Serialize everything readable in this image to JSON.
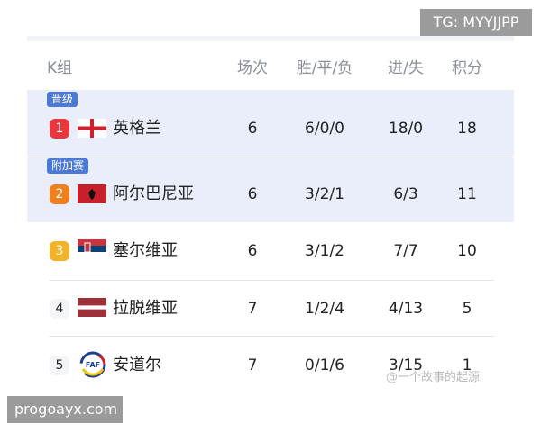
{
  "watermark_top": "TG: MYYJJPP",
  "watermark_bottom": "progoayx.com",
  "credit": "@一个故事的起源",
  "table": {
    "group": "K组",
    "headers": [
      "场次",
      "胜/平/负",
      "进/失",
      "积分"
    ],
    "rows": [
      {
        "tag": "晋级",
        "rank": "1",
        "rank_color": "#e8383d",
        "flag": "england-flag",
        "name": "英格兰",
        "played": "6",
        "wdl": "6/0/0",
        "goals": "18/0",
        "points": "18"
      },
      {
        "tag": "附加赛",
        "rank": "2",
        "rank_color": "#f07f1e",
        "flag": "albania-flag",
        "name": "阿尔巴尼亚",
        "played": "6",
        "wdl": "3/2/1",
        "goals": "6/3",
        "points": "11"
      },
      {
        "rank": "3",
        "rank_color": "#f2b22a",
        "flag": "serbia-flag",
        "name": "塞尔维亚",
        "played": "6",
        "wdl": "3/1/2",
        "goals": "7/7",
        "points": "10"
      },
      {
        "rank": "4",
        "flag": "latvia-flag",
        "name": "拉脱维亚",
        "played": "7",
        "wdl": "1/2/4",
        "goals": "4/13",
        "points": "5"
      },
      {
        "rank": "5",
        "flag": "andorra-faf-logo",
        "name": "安道尔",
        "played": "7",
        "wdl": "0/1/6",
        "goals": "3/15",
        "points": "1"
      }
    ]
  }
}
